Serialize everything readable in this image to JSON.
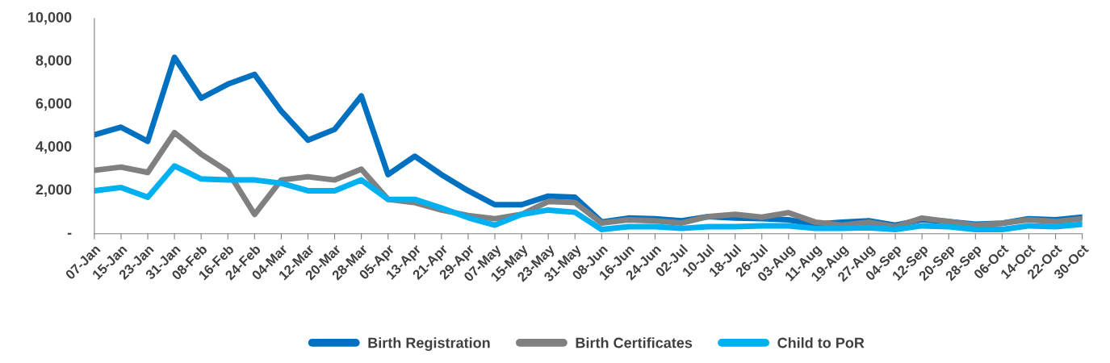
{
  "chart_data": {
    "type": "line",
    "categories": [
      "07-Jan",
      "15-Jan",
      "23-Jan",
      "31-Jan",
      "08-Feb",
      "16-Feb",
      "24-Feb",
      "04-Mar",
      "12-Mar",
      "20-Mar",
      "28-Mar",
      "05-Apr",
      "13-Apr",
      "21-Apr",
      "29-Apr",
      "07-May",
      "15-May",
      "23-May",
      "31-May",
      "08-Jun",
      "16-Jun",
      "24-Jun",
      "02-Jul",
      "10-Jul",
      "18-Jul",
      "26-Jul",
      "03-Aug",
      "11-Aug",
      "19-Aug",
      "27-Aug",
      "04-Sep",
      "12-Sep",
      "20-Sep",
      "28-Sep",
      "06-Oct",
      "14-Oct",
      "22-Oct",
      "30-Oct"
    ],
    "series": [
      {
        "name": "Birth Registration",
        "color": "#0070c0",
        "values": [
          4600,
          4950,
          4300,
          8200,
          6300,
          6950,
          7400,
          5700,
          4350,
          4850,
          6400,
          2750,
          3600,
          2750,
          2000,
          1350,
          1350,
          1750,
          1700,
          550,
          730,
          700,
          600,
          800,
          730,
          700,
          650,
          440,
          540,
          600,
          400,
          650,
          570,
          440,
          490,
          700,
          650,
          770
        ]
      },
      {
        "name": "Birth Certificates",
        "color": "#808080",
        "values": [
          2950,
          3100,
          2850,
          4700,
          3700,
          2900,
          900,
          2500,
          2650,
          2500,
          3000,
          1600,
          1450,
          1100,
          850,
          700,
          900,
          1500,
          1450,
          500,
          650,
          600,
          500,
          800,
          900,
          770,
          980,
          540,
          400,
          540,
          330,
          730,
          570,
          400,
          490,
          650,
          570,
          700
        ]
      },
      {
        "name": "Child to PoR",
        "color": "#00b0f0",
        "values": [
          2000,
          2150,
          1700,
          3150,
          2550,
          2500,
          2500,
          2350,
          2000,
          2000,
          2500,
          1600,
          1600,
          1200,
          750,
          400,
          900,
          1100,
          1000,
          200,
          330,
          330,
          250,
          330,
          330,
          370,
          370,
          250,
          250,
          280,
          200,
          370,
          330,
          200,
          200,
          370,
          330,
          440
        ]
      }
    ],
    "ylim": [
      0,
      10000
    ],
    "yticks": [
      {
        "value": 0,
        "label": "-"
      },
      {
        "value": 2000,
        "label": "2,000"
      },
      {
        "value": 4000,
        "label": "4,000"
      },
      {
        "value": 6000,
        "label": "6,000"
      },
      {
        "value": 8000,
        "label": "8,000"
      },
      {
        "value": 10000,
        "label": "10,000"
      }
    ],
    "grid": false,
    "legend": "bottom",
    "marker": "none",
    "line_style": "solid"
  }
}
